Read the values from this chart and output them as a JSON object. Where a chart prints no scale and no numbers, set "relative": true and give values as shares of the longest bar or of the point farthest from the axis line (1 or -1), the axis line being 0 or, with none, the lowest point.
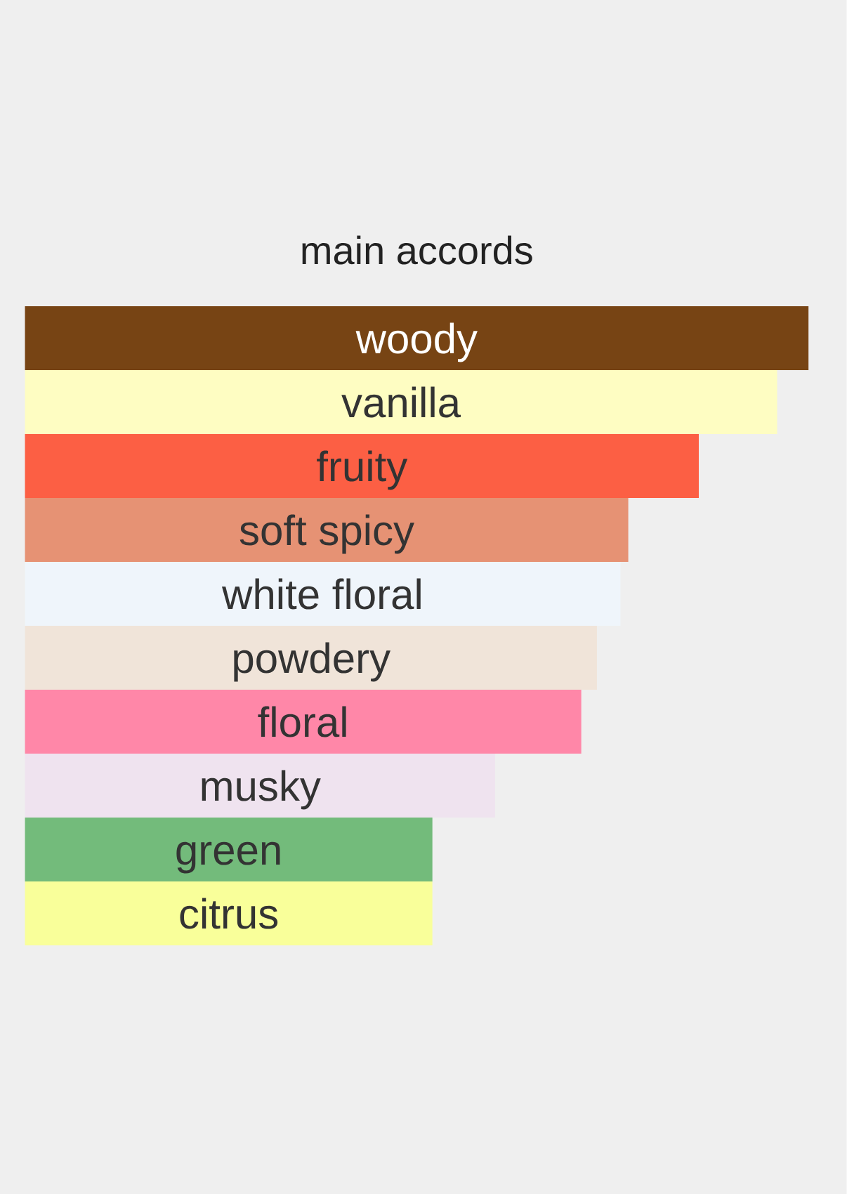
{
  "chart_data": {
    "type": "bar",
    "orientation": "horizontal",
    "relative": true,
    "title": "main accords",
    "categories": [
      "woody",
      "vanilla",
      "fruity",
      "soft spicy",
      "white floral",
      "powdery",
      "floral",
      "musky",
      "green",
      "citrus"
    ],
    "values": [
      1,
      0.96,
      0.86,
      0.77,
      0.76,
      0.73,
      0.71,
      0.6,
      0.52,
      0.52
    ],
    "colors": [
      "#774414",
      "#fefdc2",
      "#fc5f44",
      "#e69274",
      "#eff5fb",
      "#f0e4d9",
      "#ff87a8",
      "#efe3ef",
      "#73bb7b",
      "#f9ff9a"
    ]
  }
}
